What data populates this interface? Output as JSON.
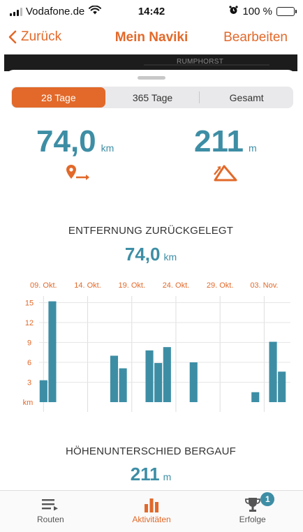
{
  "status_bar": {
    "carrier": "Vodafone.de",
    "time": "14:42",
    "battery": "100 %",
    "battery_level": 1.0,
    "signal_bars_filled": 3,
    "signal_bars_total": 4
  },
  "nav": {
    "back_label": "Zurück",
    "title": "Mein Naviki",
    "edit_label": "Bearbeiten"
  },
  "map": {
    "label": "RUMPHORST"
  },
  "range_tabs": [
    {
      "label": "28 Tage",
      "active": true
    },
    {
      "label": "365 Tage",
      "active": false
    },
    {
      "label": "Gesamt",
      "active": false
    }
  ],
  "summary": {
    "distance_value": "74,0",
    "distance_unit": "km",
    "ascent_value": "211",
    "ascent_unit": "m",
    "distance_icon": "route-pin-arrow-icon",
    "ascent_icon": "mountain-arrow-icon"
  },
  "distance_section": {
    "title": "ENTFERNUNG ZURÜCKGELEGT",
    "value": "74,0",
    "unit": "km"
  },
  "ascent_section": {
    "title": "HÖHENUNTERSCHIED BERGAUF",
    "value": "211",
    "unit": "m"
  },
  "chart_data": {
    "type": "bar",
    "x": [
      "2023-10-09",
      "2023-10-10",
      "2023-10-17",
      "2023-10-18",
      "2023-10-21",
      "2023-10-22",
      "2023-10-23",
      "2023-10-26",
      "2023-11-02",
      "2023-11-04",
      "2023-11-05"
    ],
    "values": [
      3.3,
      15.2,
      7.0,
      5.1,
      7.8,
      5.9,
      8.3,
      6.0,
      1.5,
      9.1,
      4.6
    ],
    "x_tick_labels": [
      "09. Okt.",
      "14. Okt.",
      "19. Okt.",
      "24. Okt.",
      "29. Okt.",
      "03. Nov."
    ],
    "y_ticks": [
      3,
      6,
      9,
      12,
      15
    ],
    "ylabel": "km",
    "ylim": [
      0,
      16
    ],
    "x_range": [
      "2023-10-09",
      "2023-11-05"
    ],
    "grid": true,
    "bar_color": "#3d8ea5",
    "tick_label_color": "#e2692a"
  },
  "tabbar": {
    "items": [
      {
        "label": "Routen",
        "icon": "routes-list-icon",
        "active": false
      },
      {
        "label": "Aktivitäten",
        "icon": "bar-chart-icon",
        "active": true
      },
      {
        "label": "Erfolge",
        "icon": "trophy-icon",
        "active": false,
        "badge": "1"
      }
    ]
  },
  "colors": {
    "accent": "#e2692a",
    "stat": "#3d8ea5",
    "battery": "#4cd964"
  }
}
